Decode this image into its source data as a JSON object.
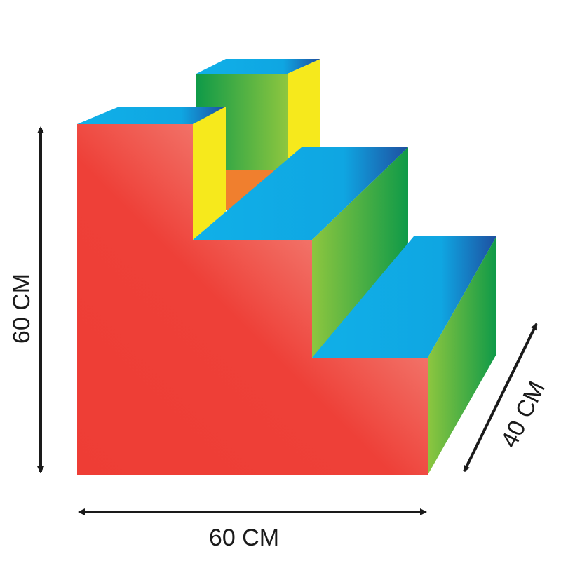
{
  "dimensions": {
    "height_label": "60 CM",
    "width_label": "60 CM",
    "depth_label": "40 CM"
  },
  "colors": {
    "front": "#ef4338",
    "top": "#1aa8e0",
    "side_green": "#23a84a",
    "side_yellow": "#f6e91c",
    "inner_orange": "#f07f2e",
    "arrow": "#1a1a1a"
  }
}
